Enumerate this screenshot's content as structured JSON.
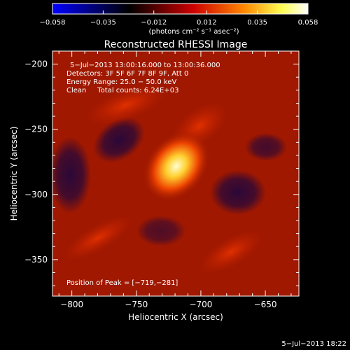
{
  "colorbar": {
    "tick_labels": [
      "−0.058",
      "−0.035",
      "−0.012",
      "0.012",
      "0.035",
      "0.058"
    ],
    "range": [
      -0.058,
      0.058
    ],
    "unit_label": "(photons cm⁻² s⁻¹ asec⁻²)",
    "colormap": [
      "#0000ff",
      "#000000",
      "#ff0000",
      "#ff8800",
      "#ffff66",
      "#ffffff"
    ]
  },
  "chart_data": {
    "type": "heatmap",
    "title": "Reconstructed RHESSI Image",
    "xlabel": "Heliocentric X (arcsec)",
    "ylabel": "Heliocentric Y (arcsec)",
    "xlim": [
      -815,
      -624
    ],
    "ylim": [
      -378,
      -190
    ],
    "x_ticks": [
      "−800",
      "−750",
      "−700",
      "−650"
    ],
    "y_ticks": [
      "−200",
      "−250",
      "−300",
      "−350"
    ],
    "annotations": [
      "5−Jul−2013 13:00:16.000 to 13:00:36.000",
      "Detectors: 3F 5F 6F 7F 8F 9F, Att 0",
      "Energy Range: 25.0 − 50.0 keV",
      "Clean     Total counts: 6.24E+03"
    ],
    "peak_label": "Position of Peak = [−719,−281]",
    "peak_position": [
      -719,
      -281
    ],
    "peak_value": 0.058,
    "background_level": 0.028,
    "colors": {
      "peak": "#ffffc0",
      "background": "#a01800",
      "negative": "#2a0838"
    }
  },
  "footer": {
    "timestamp": "5−Jul−2013 18:22"
  }
}
